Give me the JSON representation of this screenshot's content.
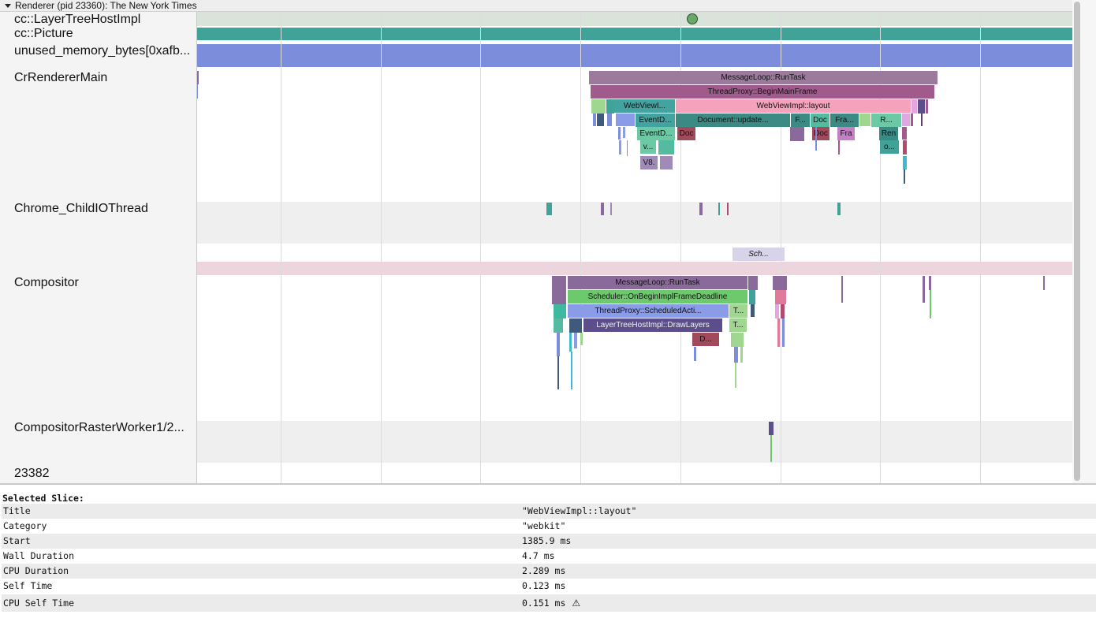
{
  "process_header": {
    "title": "Renderer (pid 23360): The New York Times"
  },
  "tracks": [
    {
      "id": "layertree",
      "label": "cc::LayerTreeHostImpl"
    },
    {
      "id": "picture",
      "label": "cc::Picture"
    },
    {
      "id": "unused",
      "label": "unused_memory_bytes[0xafb..."
    },
    {
      "id": "renderer-main",
      "label": "CrRendererMain"
    },
    {
      "id": "child-io",
      "label": "Chrome_ChildIOThread"
    },
    {
      "id": "compositor",
      "label": "Compositor"
    },
    {
      "id": "raster",
      "label": "CompositorRasterWorker1/2..."
    },
    {
      "id": "t23382",
      "label": "23382"
    }
  ],
  "slices": {
    "main": [
      "MessageLoop::RunTask",
      "ThreadProxy::BeginMainFrame",
      "WebViewI...",
      "WebViewImpl::layout",
      "EventD...",
      "Document::update...",
      "F...",
      "Doc",
      "Fra...",
      "R...",
      "EventD...",
      "Doc",
      "Doc",
      "Fra",
      "Ren",
      "v...",
      "o...",
      "V8."
    ],
    "compositor": [
      "Sch...",
      "MessageLoop::RunTask",
      "Scheduler::OnBeginImplFrameDeadline",
      "ThreadProxy::ScheduledActi...",
      "T...",
      "LayerTreeHostImpl::DrawLayers",
      "T...",
      "D..."
    ]
  },
  "colors": {
    "picture_bar": "#3fa398",
    "unused_bar": "#7b8ddb",
    "compositor_band": "#ecd5dc",
    "marker": "#6aa86a"
  },
  "details": {
    "heading": "Selected Slice:",
    "rows": [
      {
        "key": "Title",
        "value": "\"WebViewImpl::layout\""
      },
      {
        "key": "Category",
        "value": "\"webkit\""
      },
      {
        "key": "Start",
        "value": "1385.9 ms"
      },
      {
        "key": "Wall Duration",
        "value": "4.7 ms"
      },
      {
        "key": "CPU Duration",
        "value": "2.289 ms"
      },
      {
        "key": "Self Time",
        "value": "0.123 ms"
      },
      {
        "key": "CPU Self Time",
        "value": "0.151 ms",
        "warning_icon": "warning-triangle-icon"
      }
    ]
  }
}
